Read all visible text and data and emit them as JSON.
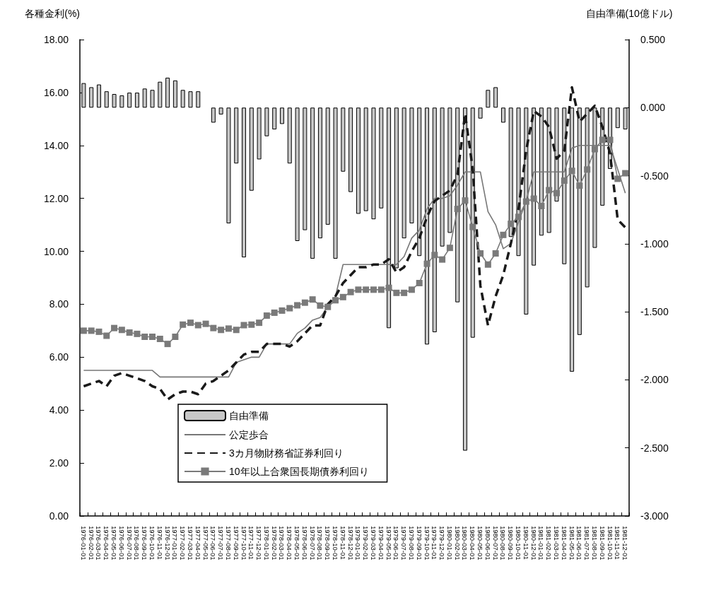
{
  "chart_data": {
    "type": "bar",
    "ylabel": "各種金利(%)",
    "y2label": "自由準備(10億ドル)",
    "categories": [
      "1976-01-01",
      "1976-02-01",
      "1976-03-01",
      "1976-04-01",
      "1976-05-01",
      "1976-06-01",
      "1976-07-01",
      "1976-08-01",
      "1976-09-01",
      "1976-10-01",
      "1976-11-01",
      "1976-12-01",
      "1977-01-01",
      "1977-02-01",
      "1977-03-01",
      "1977-04-01",
      "1977-05-01",
      "1977-06-01",
      "1977-07-01",
      "1977-08-01",
      "1977-09-01",
      "1977-10-01",
      "1977-11-01",
      "1977-12-01",
      "1978-01-01",
      "1978-02-01",
      "1978-03-01",
      "1978-04-01",
      "1978-05-01",
      "1978-06-01",
      "1978-07-01",
      "1978-08-01",
      "1978-09-01",
      "1978-10-01",
      "1978-11-01",
      "1978-12-01",
      "1979-01-01",
      "1979-02-01",
      "1979-03-01",
      "1979-04-01",
      "1979-05-01",
      "1979-06-01",
      "1979-07-01",
      "1979-08-01",
      "1979-09-01",
      "1979-10-01",
      "1979-11-01",
      "1979-12-01",
      "1980-01-01",
      "1980-02-01",
      "1980-03-01",
      "1980-04-01",
      "1980-05-01",
      "1980-06-01",
      "1980-07-01",
      "1980-08-01",
      "1980-09-01",
      "1980-10-01",
      "1980-11-01",
      "1980-12-01",
      "1981-01-01",
      "1981-02-01",
      "1981-03-01",
      "1981-04-01",
      "1981-05-01",
      "1981-06-01",
      "1981-07-01",
      "1981-08-01",
      "1981-09-01",
      "1981-10-01",
      "1981-11-01",
      "1981-12-01"
    ],
    "series": [
      {
        "name": "自由準備",
        "axis": "y2",
        "color": "#c8c8c8",
        "values": [
          0.18,
          0.15,
          0.17,
          0.12,
          0.1,
          0.09,
          0.11,
          0.11,
          0.14,
          0.13,
          0.19,
          0.22,
          0.2,
          0.13,
          0.12,
          0.12,
          null,
          -0.11,
          -0.05,
          -0.85,
          -0.41,
          -1.1,
          -0.61,
          -0.38,
          -0.21,
          -0.16,
          -0.12,
          -0.41,
          -0.98,
          -0.9,
          -1.11,
          -0.96,
          -0.86,
          -1.11,
          -0.47,
          -0.62,
          -0.78,
          -0.76,
          -0.82,
          -0.74,
          -1.62,
          -1.18,
          -0.96,
          -0.85,
          -1.09,
          -1.74,
          -1.65,
          -1.02,
          -0.92,
          -1.43,
          -2.52,
          -1.69,
          -0.08,
          0.13,
          0.15,
          -0.11,
          -0.95,
          -1.09,
          -1.52,
          -1.16,
          -0.94,
          -0.92,
          -0.69,
          -1.15,
          -1.94,
          -1.67,
          -1.32,
          -1.03,
          -0.72,
          -0.45,
          -0.15,
          -0.16
        ]
      },
      {
        "name": "公定歩合",
        "type": "line",
        "color": "#777777",
        "marker": "none",
        "line_style": "solid",
        "values": [
          5.5,
          5.5,
          5.5,
          5.5,
          5.5,
          5.5,
          5.5,
          5.5,
          5.5,
          5.5,
          5.25,
          5.25,
          5.25,
          5.25,
          5.25,
          5.25,
          5.25,
          5.25,
          5.25,
          5.25,
          5.8,
          5.9,
          6.0,
          6.0,
          6.5,
          6.5,
          6.5,
          6.5,
          6.9,
          7.1,
          7.4,
          7.5,
          7.9,
          8.3,
          9.5,
          9.5,
          9.5,
          9.5,
          9.5,
          9.5,
          9.5,
          9.5,
          9.8,
          10.5,
          10.8,
          11.6,
          12.0,
          12.0,
          12.1,
          12.5,
          13.0,
          13.0,
          13.0,
          11.5,
          11.0,
          10.1,
          10.3,
          11.1,
          11.9,
          13.0,
          13.0,
          13.0,
          13.0,
          13.0,
          13.9,
          14.0,
          14.0,
          14.0,
          14.0,
          14.0,
          13.1,
          12.2
        ]
      },
      {
        "name": "3カ月物財務省証券利回り",
        "type": "line",
        "color": "#1a1a1a",
        "marker": "none",
        "line_style": "dashed",
        "values": [
          4.9,
          5.0,
          5.1,
          4.9,
          5.3,
          5.4,
          5.3,
          5.2,
          5.1,
          4.9,
          4.8,
          4.4,
          4.6,
          4.7,
          4.7,
          4.6,
          5.0,
          5.1,
          5.3,
          5.5,
          5.8,
          6.1,
          6.2,
          6.2,
          6.5,
          6.5,
          6.5,
          6.4,
          6.6,
          6.9,
          7.2,
          7.2,
          8.0,
          8.3,
          8.8,
          9.1,
          9.4,
          9.4,
          9.5,
          9.5,
          9.7,
          9.2,
          9.4,
          10.0,
          10.5,
          11.3,
          11.9,
          12.1,
          12.3,
          12.9,
          15.2,
          13.1,
          8.7,
          7.2,
          8.3,
          9.1,
          10.3,
          11.6,
          13.8,
          15.3,
          15.1,
          14.7,
          13.5,
          13.8,
          16.2,
          14.9,
          15.2,
          15.5,
          14.7,
          13.7,
          11.2,
          10.9
        ]
      },
      {
        "name": "10年以上合衆国長期債券利回り",
        "type": "line",
        "color": "#7a7a7a",
        "marker": "square",
        "line_style": "solid",
        "values": [
          7.0,
          7.0,
          6.96,
          6.81,
          7.1,
          7.03,
          6.93,
          6.88,
          6.77,
          6.77,
          6.69,
          6.5,
          6.77,
          7.23,
          7.3,
          7.21,
          7.26,
          7.1,
          7.03,
          7.08,
          7.03,
          7.21,
          7.23,
          7.3,
          7.57,
          7.68,
          7.76,
          7.85,
          7.96,
          8.06,
          8.18,
          7.95,
          7.9,
          8.15,
          8.27,
          8.46,
          8.55,
          8.55,
          8.55,
          8.55,
          8.62,
          8.43,
          8.43,
          8.55,
          8.8,
          9.53,
          9.86,
          9.69,
          10.13,
          11.6,
          11.92,
          10.92,
          9.92,
          9.5,
          9.92,
          10.62,
          11.04,
          11.3,
          11.88,
          11.99,
          11.71,
          12.31,
          12.2,
          12.67,
          13.04,
          12.48,
          13.09,
          13.86,
          14.21,
          14.21,
          12.74,
          12.95
        ]
      }
    ],
    "ylim": [
      0,
      18
    ],
    "yticks": [
      {
        "value": 0,
        "label": "0.00"
      },
      {
        "value": 2,
        "label": "2.00"
      },
      {
        "value": 4,
        "label": "4.00"
      },
      {
        "value": 6,
        "label": "6.00"
      },
      {
        "value": 8,
        "label": "8.00"
      },
      {
        "value": 10,
        "label": "10.00"
      },
      {
        "value": 12,
        "label": "12.00"
      },
      {
        "value": 14,
        "label": "14.00"
      },
      {
        "value": 16,
        "label": "16.00"
      },
      {
        "value": 18,
        "label": "18.00"
      }
    ],
    "y2lim": [
      -3,
      0.5
    ],
    "y2ticks": [
      {
        "value": -3,
        "label": "-3.000"
      },
      {
        "value": -2.5,
        "label": "-2.500"
      },
      {
        "value": -2,
        "label": "-2.000"
      },
      {
        "value": -1.5,
        "label": "-1.500"
      },
      {
        "value": -1,
        "label": "-1.000"
      },
      {
        "value": -0.5,
        "label": "-0.500"
      },
      {
        "value": 0,
        "label": "0.000"
      },
      {
        "value": 0.5,
        "label": "0.500"
      }
    ],
    "grid": false,
    "legend": "bottom left"
  }
}
